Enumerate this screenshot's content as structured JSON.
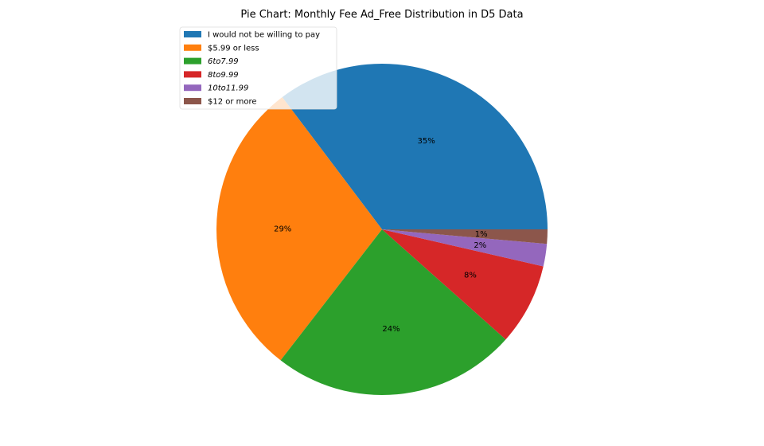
{
  "chart_data": {
    "type": "pie",
    "title": "Pie Chart: Monthly Fee Ad_Free Distribution in D5 Data",
    "legend_position": "top-left",
    "start_angle_deg": 0,
    "direction": "counterclockwise",
    "slices": [
      {
        "label": "I would not be willing to pay",
        "value": 35.4,
        "pct_label": "35%",
        "color": "#1f77b4"
      },
      {
        "label": "$5.99 or less",
        "value": 29.3,
        "pct_label": "29%",
        "color": "#ff7f0e"
      },
      {
        "label": "6to7.99",
        "value": 24.0,
        "pct_label": "24%",
        "color": "#2ca02c"
      },
      {
        "label": "8to9.99",
        "value": 8.0,
        "pct_label": "8%",
        "color": "#d62728"
      },
      {
        "label": "10to11.99",
        "value": 2.2,
        "pct_label": "2%",
        "color": "#9467bd"
      },
      {
        "label": "$12 or more",
        "value": 1.4,
        "pct_label": "1%",
        "color": "#8c564b"
      }
    ]
  }
}
